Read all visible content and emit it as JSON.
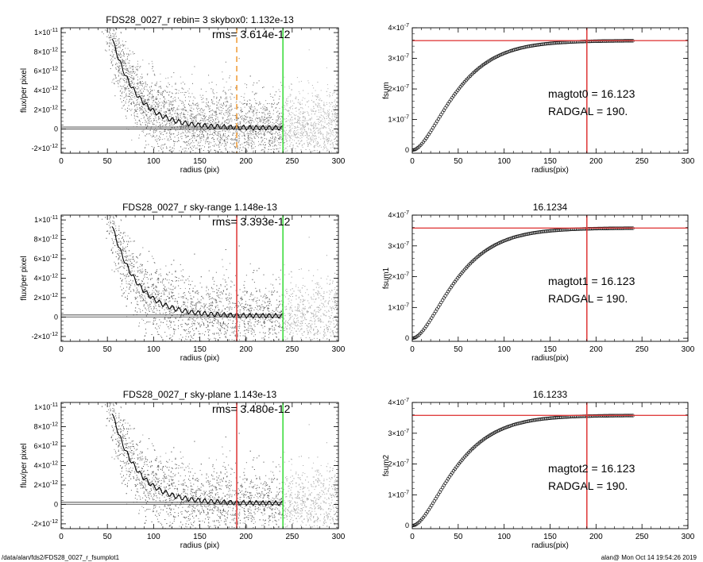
{
  "footer": {
    "path": "/data/alan/fds2/FDS28_0027_r_fsumplot1",
    "stamp": "alan@  Mon Oct 14 19:54:26 2019"
  },
  "colors": {
    "marker_dashed": "#f0a040",
    "marker_red": "#e04040",
    "marker_green": "#40dd40",
    "hline_red": "#e04040"
  },
  "chart_data": [
    {
      "type": "scatter",
      "title": "FDS28_0027_r rebin= 3    skybox0:  1.132e-13",
      "annotation": "rms= 3.614e-12",
      "xlabel": "radius (pix)",
      "ylabel": "flux/per pixel",
      "xlim": [
        0,
        300
      ],
      "ylim": [
        -2.5e-12,
        1.05e-11
      ],
      "xticks": [
        "0",
        "50",
        "100",
        "150",
        "200",
        "250",
        "300"
      ],
      "yticks": [
        {
          "v": -2e-12,
          "m": "-2×10",
          "e": "-12"
        },
        {
          "v": 0,
          "m": "0",
          "e": ""
        },
        {
          "v": 2e-12,
          "m": "2×10",
          "e": "-12"
        },
        {
          "v": 4e-12,
          "m": "4×10",
          "e": "-12"
        },
        {
          "v": 6e-12,
          "m": "6×10",
          "e": "-12"
        },
        {
          "v": 8e-12,
          "m": "8×10",
          "e": "-12"
        },
        {
          "v": 1e-11,
          "m": "1×10",
          "e": "-11"
        }
      ],
      "profile_amplitude": 7.2e-11,
      "profile_scale": 27,
      "profile_end": 240,
      "baseline": 1.132e-13,
      "vlines": [
        {
          "x": 190,
          "style": "dashed",
          "color": "orange"
        },
        {
          "x": 240,
          "style": "solid",
          "color": "green"
        }
      ]
    },
    {
      "type": "line",
      "title": "",
      "annotations": [
        "magtot0 =  16.123",
        "RADGAL =    190."
      ],
      "xlabel": "radius(pix)",
      "ylabel": "fsum",
      "xlim": [
        0,
        300
      ],
      "ylim": [
        -1e-08,
        4e-07
      ],
      "xticks": [
        "0",
        "50",
        "100",
        "150",
        "200",
        "250",
        "300"
      ],
      "yticks": [
        {
          "v": 0,
          "m": "0",
          "e": ""
        },
        {
          "v": 1e-07,
          "m": "1×10",
          "e": "-7"
        },
        {
          "v": 2e-07,
          "m": "2×10",
          "e": "-7"
        },
        {
          "v": 3e-07,
          "m": "3×10",
          "e": "-7"
        },
        {
          "v": 4e-07,
          "m": "4×10",
          "e": "-7"
        }
      ],
      "total": 3.58e-07,
      "growth_scale": 27,
      "curve_end": 240,
      "hline": 3.58e-07,
      "vline": 190
    },
    {
      "type": "scatter",
      "title": "FDS28_0027_r sky-range  1.148e-13",
      "annotation": "rms= 3.393e-12",
      "xlabel": "radius (pix)",
      "ylabel": "flux/per pixel",
      "xlim": [
        0,
        300
      ],
      "ylim": [
        -2.5e-12,
        1.05e-11
      ],
      "xticks": [
        "0",
        "50",
        "100",
        "150",
        "200",
        "250",
        "300"
      ],
      "yticks": [
        {
          "v": -2e-12,
          "m": "-2×10",
          "e": "-12"
        },
        {
          "v": 0,
          "m": "0",
          "e": ""
        },
        {
          "v": 2e-12,
          "m": "2×10",
          "e": "-12"
        },
        {
          "v": 4e-12,
          "m": "4×10",
          "e": "-12"
        },
        {
          "v": 6e-12,
          "m": "6×10",
          "e": "-12"
        },
        {
          "v": 8e-12,
          "m": "8×10",
          "e": "-12"
        },
        {
          "v": 1e-11,
          "m": "1×10",
          "e": "-11"
        }
      ],
      "profile_amplitude": 7.2e-11,
      "profile_scale": 27,
      "profile_end": 240,
      "baseline": 1.148e-13,
      "vlines": [
        {
          "x": 190,
          "style": "solid",
          "color": "red"
        },
        {
          "x": 240,
          "style": "solid",
          "color": "green"
        }
      ]
    },
    {
      "type": "line",
      "title": "16.1234",
      "annotations": [
        "magtot1 =  16.123",
        "RADGAL =    190."
      ],
      "xlabel": "radius(pix)",
      "ylabel": "fsum1",
      "xlim": [
        0,
        300
      ],
      "ylim": [
        -1e-08,
        4e-07
      ],
      "xticks": [
        "0",
        "50",
        "100",
        "150",
        "200",
        "250",
        "300"
      ],
      "yticks": [
        {
          "v": 0,
          "m": "0",
          "e": ""
        },
        {
          "v": 1e-07,
          "m": "1×10",
          "e": "-7"
        },
        {
          "v": 2e-07,
          "m": "2×10",
          "e": "-7"
        },
        {
          "v": 3e-07,
          "m": "3×10",
          "e": "-7"
        },
        {
          "v": 4e-07,
          "m": "4×10",
          "e": "-7"
        }
      ],
      "total": 3.58e-07,
      "growth_scale": 27,
      "curve_end": 240,
      "hline": 3.58e-07,
      "vline": 190
    },
    {
      "type": "scatter",
      "title": "FDS28_0027_r sky-plane  1.143e-13",
      "annotation": "rms= 3.480e-12",
      "xlabel": "radius (pix)",
      "ylabel": "flux/per pixel",
      "xlim": [
        0,
        300
      ],
      "ylim": [
        -2.5e-12,
        1.05e-11
      ],
      "xticks": [
        "0",
        "50",
        "100",
        "150",
        "200",
        "250",
        "300"
      ],
      "yticks": [
        {
          "v": -2e-12,
          "m": "-2×10",
          "e": "-12"
        },
        {
          "v": 0,
          "m": "0",
          "e": ""
        },
        {
          "v": 2e-12,
          "m": "2×10",
          "e": "-12"
        },
        {
          "v": 4e-12,
          "m": "4×10",
          "e": "-12"
        },
        {
          "v": 6e-12,
          "m": "6×10",
          "e": "-12"
        },
        {
          "v": 8e-12,
          "m": "8×10",
          "e": "-12"
        },
        {
          "v": 1e-11,
          "m": "1×10",
          "e": "-11"
        }
      ],
      "profile_amplitude": 7.2e-11,
      "profile_scale": 27,
      "profile_end": 240,
      "baseline": 1.143e-13,
      "vlines": [
        {
          "x": 190,
          "style": "solid",
          "color": "red"
        },
        {
          "x": 240,
          "style": "solid",
          "color": "green"
        }
      ]
    },
    {
      "type": "line",
      "title": "16.1233",
      "annotations": [
        "magtot2 =  16.123",
        "RADGAL =    190."
      ],
      "xlabel": "radius(pix)",
      "ylabel": "fsum2",
      "xlim": [
        0,
        300
      ],
      "ylim": [
        -1e-08,
        4e-07
      ],
      "xticks": [
        "0",
        "50",
        "100",
        "150",
        "200",
        "250",
        "300"
      ],
      "yticks": [
        {
          "v": 0,
          "m": "0",
          "e": ""
        },
        {
          "v": 1e-07,
          "m": "1×10",
          "e": "-7"
        },
        {
          "v": 2e-07,
          "m": "2×10",
          "e": "-7"
        },
        {
          "v": 3e-07,
          "m": "3×10",
          "e": "-7"
        },
        {
          "v": 4e-07,
          "m": "4×10",
          "e": "-7"
        }
      ],
      "total": 3.58e-07,
      "growth_scale": 27,
      "curve_end": 240,
      "hline": 3.58e-07,
      "vline": 190
    }
  ]
}
